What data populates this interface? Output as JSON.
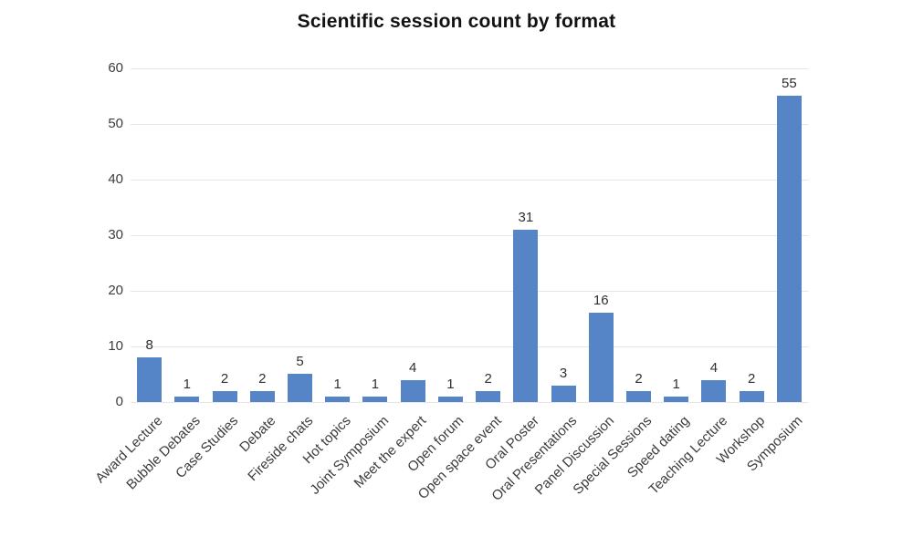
{
  "chart_data": {
    "type": "bar",
    "title": "Scientific session count by format",
    "categories": [
      "Award Lecture",
      "Bubble Debates",
      "Case Studies",
      "Debate",
      "Fireside chats",
      "Hot topics",
      "Joint Symposium",
      "Meet the expert",
      "Open forum",
      "Open space event",
      "Oral Poster",
      "Oral Presentations",
      "Panel Discussion",
      "Special Sessions",
      "Speed dating",
      "Teaching Lecture",
      "Workshop",
      "Symposium"
    ],
    "values": [
      8,
      1,
      2,
      2,
      5,
      1,
      1,
      4,
      1,
      2,
      31,
      3,
      16,
      2,
      1,
      4,
      2,
      55
    ],
    "xlabel": "",
    "ylabel": "",
    "ylim": [
      0,
      60
    ],
    "yticks": [
      0,
      10,
      20,
      30,
      40,
      50,
      60
    ],
    "grid": true,
    "legend": false,
    "bar_labels_shown": true,
    "colors": {
      "bar": "#5585C6",
      "gridline": "#E6E6E6",
      "tick_text": "#3C3C3C",
      "value_text": "#303030",
      "title_text": "#121212",
      "background": "#FFFFFF"
    }
  }
}
